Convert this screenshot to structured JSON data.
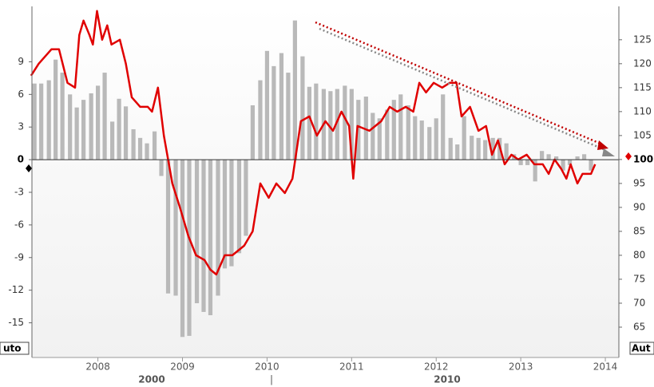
{
  "chart_data": {
    "type": "bar-line",
    "xlim": [
      2007.22,
      2014.16
    ],
    "xticks": [
      2008,
      2009,
      2010,
      2011,
      2012,
      2013,
      2014
    ],
    "ylim": [
      -17.6,
      13.8
    ],
    "yticks": [
      -15,
      -12,
      -9,
      -6,
      -3,
      0,
      3,
      6,
      9
    ],
    "y2lim": [
      60,
      131.3
    ],
    "y2ticks": [
      65,
      70,
      75,
      80,
      85,
      90,
      95,
      100,
      105,
      110,
      115,
      120,
      125
    ],
    "range_labels": [
      "2000",
      "|",
      "2010"
    ],
    "mode_labels": [
      "uto",
      "Aut"
    ],
    "series": [
      {
        "type": "bar",
        "color": "#b9b9b9",
        "x": [
          2007.25,
          2007.33,
          2007.42,
          2007.5,
          2007.58,
          2007.67,
          2007.75,
          2007.83,
          2007.92,
          2008.0,
          2008.08,
          2008.17,
          2008.25,
          2008.33,
          2008.42,
          2008.5,
          2008.58,
          2008.67,
          2008.75,
          2008.83,
          2008.92,
          2009.0,
          2009.08,
          2009.17,
          2009.25,
          2009.33,
          2009.42,
          2009.5,
          2009.58,
          2009.67,
          2009.75,
          2009.83,
          2009.92,
          2010.0,
          2010.08,
          2010.17,
          2010.25,
          2010.33,
          2010.42,
          2010.5,
          2010.58,
          2010.67,
          2010.75,
          2010.83,
          2010.92,
          2011.0,
          2011.08,
          2011.17,
          2011.25,
          2011.33,
          2011.42,
          2011.5,
          2011.58,
          2011.67,
          2011.75,
          2011.83,
          2011.92,
          2012.0,
          2012.08,
          2012.17,
          2012.25,
          2012.33,
          2012.42,
          2012.5,
          2012.58,
          2012.67,
          2012.75,
          2012.83,
          2012.92,
          2013.0,
          2013.08,
          2013.17,
          2013.25,
          2013.33,
          2013.42,
          2013.5,
          2013.58,
          2013.67,
          2013.75,
          2013.83
        ],
        "values": [
          7.0,
          7.0,
          7.3,
          9.2,
          8.0,
          6.0,
          4.8,
          5.5,
          6.1,
          6.8,
          8.0,
          3.5,
          5.6,
          4.9,
          2.8,
          2.0,
          1.5,
          2.6,
          -1.5,
          -12.3,
          -12.5,
          -16.3,
          -16.2,
          -13.2,
          -14.0,
          -14.3,
          -12.5,
          -10.0,
          -9.8,
          -8.6,
          -7.0,
          5.0,
          7.3,
          10.0,
          8.6,
          9.8,
          8.0,
          12.8,
          9.5,
          6.7,
          7.0,
          6.5,
          6.3,
          6.5,
          6.8,
          6.5,
          5.5,
          5.8,
          4.3,
          3.8,
          4.6,
          5.5,
          6.0,
          5.0,
          4.0,
          3.6,
          3.0,
          3.8,
          6.0,
          2.0,
          1.4,
          4.0,
          2.2,
          2.0,
          1.8,
          2.0,
          2.0,
          1.5,
          0.5,
          -0.5,
          -0.5,
          -2.0,
          0.8,
          0.5,
          0.3,
          -1.0,
          -0.5,
          0.3,
          0.5,
          -1.0
        ]
      },
      {
        "type": "line",
        "axis": "y2",
        "color": "#e00000",
        "x": [
          2007.21,
          2007.3,
          2007.45,
          2007.54,
          2007.64,
          2007.73,
          2007.78,
          2007.83,
          2007.9,
          2007.94,
          2007.99,
          2008.05,
          2008.11,
          2008.16,
          2008.26,
          2008.33,
          2008.4,
          2008.5,
          2008.59,
          2008.64,
          2008.71,
          2008.78,
          2008.88,
          2008.97,
          2009.07,
          2009.16,
          2009.26,
          2009.33,
          2009.4,
          2009.5,
          2009.59,
          2009.73,
          2009.83,
          2009.92,
          2010.02,
          2010.11,
          2010.21,
          2010.3,
          2010.4,
          2010.5,
          2010.59,
          2010.69,
          2010.78,
          2010.88,
          2010.97,
          2011.02,
          2011.07,
          2011.21,
          2011.35,
          2011.45,
          2011.54,
          2011.64,
          2011.73,
          2011.8,
          2011.88,
          2011.97,
          2012.07,
          2012.16,
          2012.24,
          2012.3,
          2012.4,
          2012.5,
          2012.59,
          2012.66,
          2012.73,
          2012.81,
          2012.89,
          2012.97,
          2013.07,
          2013.16,
          2013.26,
          2013.33,
          2013.4,
          2013.48,
          2013.54,
          2013.59,
          2013.67,
          2013.73,
          2013.83,
          2013.88
        ],
        "values": [
          117.5,
          120,
          123,
          123,
          116,
          115,
          126,
          129,
          126,
          124,
          131,
          125,
          128,
          124,
          125,
          120,
          113,
          111,
          111,
          110,
          115,
          105,
          95,
          90,
          84,
          80,
          79,
          77,
          76,
          80,
          80,
          82,
          85,
          95,
          92,
          95,
          93,
          96,
          108,
          109,
          105,
          108,
          106,
          110,
          107,
          96,
          107,
          106,
          108,
          111,
          110,
          111,
          110,
          116,
          114,
          116,
          115,
          116,
          116,
          109,
          111,
          106,
          107,
          101,
          104,
          99,
          101,
          100,
          101,
          99,
          99,
          97,
          100,
          98,
          96,
          99,
          95,
          97,
          97,
          99
        ]
      }
    ]
  }
}
